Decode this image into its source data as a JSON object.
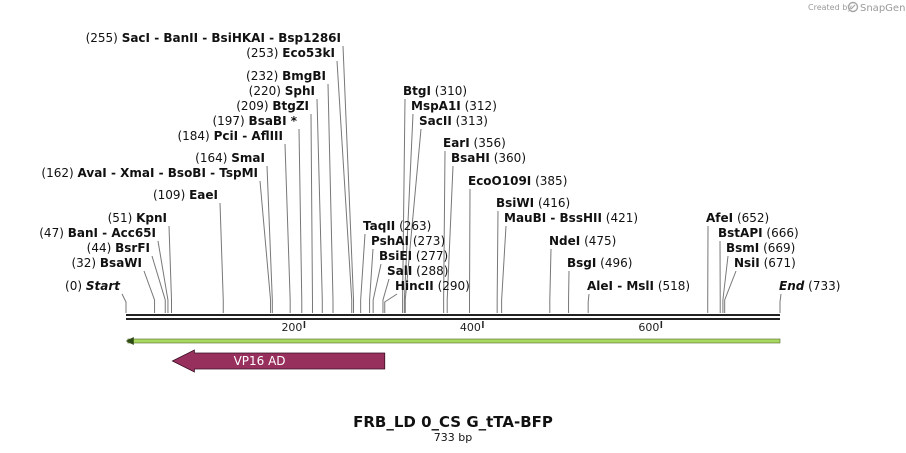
{
  "brand": {
    "created_by": "Created by",
    "name": "SnapGene"
  },
  "sequence": {
    "name": "FRB_LD 0_CS G_tTA-BFP",
    "length_label": "733 bp",
    "length": 733
  },
  "ticks": [
    {
      "value": 200,
      "label": "200"
    },
    {
      "value": 400,
      "label": "400"
    },
    {
      "value": 600,
      "label": "600"
    }
  ],
  "features": [
    {
      "name": "VP16 AD",
      "start": 52,
      "end": 290,
      "direction": "reverse",
      "color": "#98305e"
    }
  ],
  "orf": {
    "start": 2,
    "end": 733,
    "color": "#a8d860",
    "direction": "reverse"
  },
  "sites": [
    {
      "pos": 0,
      "pos_text": "(0)",
      "names": [
        "Start"
      ],
      "end": true
    },
    {
      "pos": 32,
      "pos_text": "(32)",
      "names": [
        "BsaWI"
      ]
    },
    {
      "pos": 44,
      "pos_text": "(44)",
      "names": [
        "BsrFI"
      ]
    },
    {
      "pos": 47,
      "pos_text": "(47)",
      "names": [
        "BanI",
        "Acc65I"
      ]
    },
    {
      "pos": 51,
      "pos_text": "(51)",
      "names": [
        "KpnI"
      ]
    },
    {
      "pos": 109,
      "pos_text": "(109)",
      "names": [
        "EaeI"
      ]
    },
    {
      "pos": 162,
      "pos_text": "(162)",
      "names": [
        "AvaI",
        "XmaI",
        "BsoBI",
        "TspMI"
      ]
    },
    {
      "pos": 164,
      "pos_text": "(164)",
      "names": [
        "SmaI"
      ]
    },
    {
      "pos": 184,
      "pos_text": "(184)",
      "names": [
        "PciI",
        "AflIII"
      ]
    },
    {
      "pos": 197,
      "pos_text": "(197)",
      "names": [
        "BsaBI *"
      ]
    },
    {
      "pos": 209,
      "pos_text": "(209)",
      "names": [
        "BtgZI"
      ]
    },
    {
      "pos": 220,
      "pos_text": "(220)",
      "names": [
        "SphI"
      ]
    },
    {
      "pos": 232,
      "pos_text": "(232)",
      "names": [
        "BmgBI"
      ]
    },
    {
      "pos": 253,
      "pos_text": "(253)",
      "names": [
        "Eco53kI"
      ]
    },
    {
      "pos": 255,
      "pos_text": "(255)",
      "names": [
        "SacI",
        "BanII",
        "BsiHKAI",
        "Bsp1286I"
      ]
    },
    {
      "pos": 263,
      "pos_text": "(263)",
      "names": [
        "TaqII"
      ]
    },
    {
      "pos": 273,
      "pos_text": "(273)",
      "names": [
        "PshAI"
      ]
    },
    {
      "pos": 277,
      "pos_text": "(277)",
      "names": [
        "BsiEI"
      ]
    },
    {
      "pos": 288,
      "pos_text": "(288)",
      "names": [
        "SalI"
      ]
    },
    {
      "pos": 290,
      "pos_text": "(290)",
      "names": [
        "HincII"
      ]
    },
    {
      "pos": 310,
      "pos_text": "(310)",
      "names": [
        "BtgI"
      ]
    },
    {
      "pos": 312,
      "pos_text": "(312)",
      "names": [
        "MspA1I"
      ]
    },
    {
      "pos": 313,
      "pos_text": "(313)",
      "names": [
        "SacII"
      ]
    },
    {
      "pos": 356,
      "pos_text": "(356)",
      "names": [
        "EarI"
      ]
    },
    {
      "pos": 360,
      "pos_text": "(360)",
      "names": [
        "BsaHI"
      ]
    },
    {
      "pos": 385,
      "pos_text": "(385)",
      "names": [
        "EcoO109I"
      ]
    },
    {
      "pos": 416,
      "pos_text": "(416)",
      "names": [
        "BsiWI"
      ]
    },
    {
      "pos": 421,
      "pos_text": "(421)",
      "names": [
        "MauBI",
        "BssHII"
      ]
    },
    {
      "pos": 475,
      "pos_text": "(475)",
      "names": [
        "NdeI"
      ]
    },
    {
      "pos": 496,
      "pos_text": "(496)",
      "names": [
        "BsgI"
      ]
    },
    {
      "pos": 518,
      "pos_text": "(518)",
      "names": [
        "AleI",
        "MslI"
      ]
    },
    {
      "pos": 652,
      "pos_text": "(652)",
      "names": [
        "AfeI"
      ]
    },
    {
      "pos": 666,
      "pos_text": "(666)",
      "names": [
        "BstAPI"
      ]
    },
    {
      "pos": 669,
      "pos_text": "(669)",
      "names": [
        "BsmI"
      ]
    },
    {
      "pos": 671,
      "pos_text": "(671)",
      "names": [
        "NsiI"
      ]
    },
    {
      "pos": 733,
      "pos_text": "(733)",
      "names": [
        "End"
      ],
      "end": true
    }
  ]
}
